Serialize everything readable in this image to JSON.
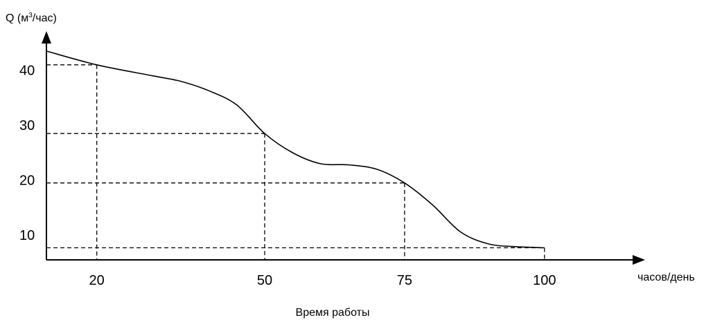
{
  "chart_data": {
    "type": "line",
    "ylabel": {
      "prefix": "Q (м",
      "sup": "3",
      "suffix": "/час)"
    },
    "xlabel": "часов/день",
    "caption": "Время работы",
    "yticks": [
      {
        "value": 40,
        "label": "40"
      },
      {
        "value": 30,
        "label": "30"
      },
      {
        "value": 20,
        "label": "20"
      },
      {
        "value": 10,
        "label": "10"
      }
    ],
    "xticks": [
      {
        "value": 20,
        "label": "20"
      },
      {
        "value": 50,
        "label": "50"
      },
      {
        "value": 75,
        "label": "75"
      },
      {
        "value": 100,
        "label": "100"
      }
    ],
    "series": [
      {
        "x": [
          11,
          20,
          30,
          35,
          40,
          45,
          50,
          55,
          60,
          65,
          70,
          75,
          80,
          85,
          90,
          95,
          100
        ],
        "y": [
          43.5,
          41,
          39,
          38,
          36.3,
          33.7,
          28.5,
          25,
          23,
          22.8,
          22,
          19.5,
          15.5,
          10.6,
          8.4,
          7.9,
          7.7
        ]
      }
    ],
    "guides": [
      {
        "x": 20,
        "y": 41
      },
      {
        "x": 50,
        "y": 28.5
      },
      {
        "x": 75,
        "y": 19.5
      },
      {
        "x": 100,
        "y": 7.7
      }
    ],
    "xlim": [
      11,
      116
    ],
    "ylim": [
      5.5,
      45
    ],
    "grid": false,
    "legend": "none"
  }
}
